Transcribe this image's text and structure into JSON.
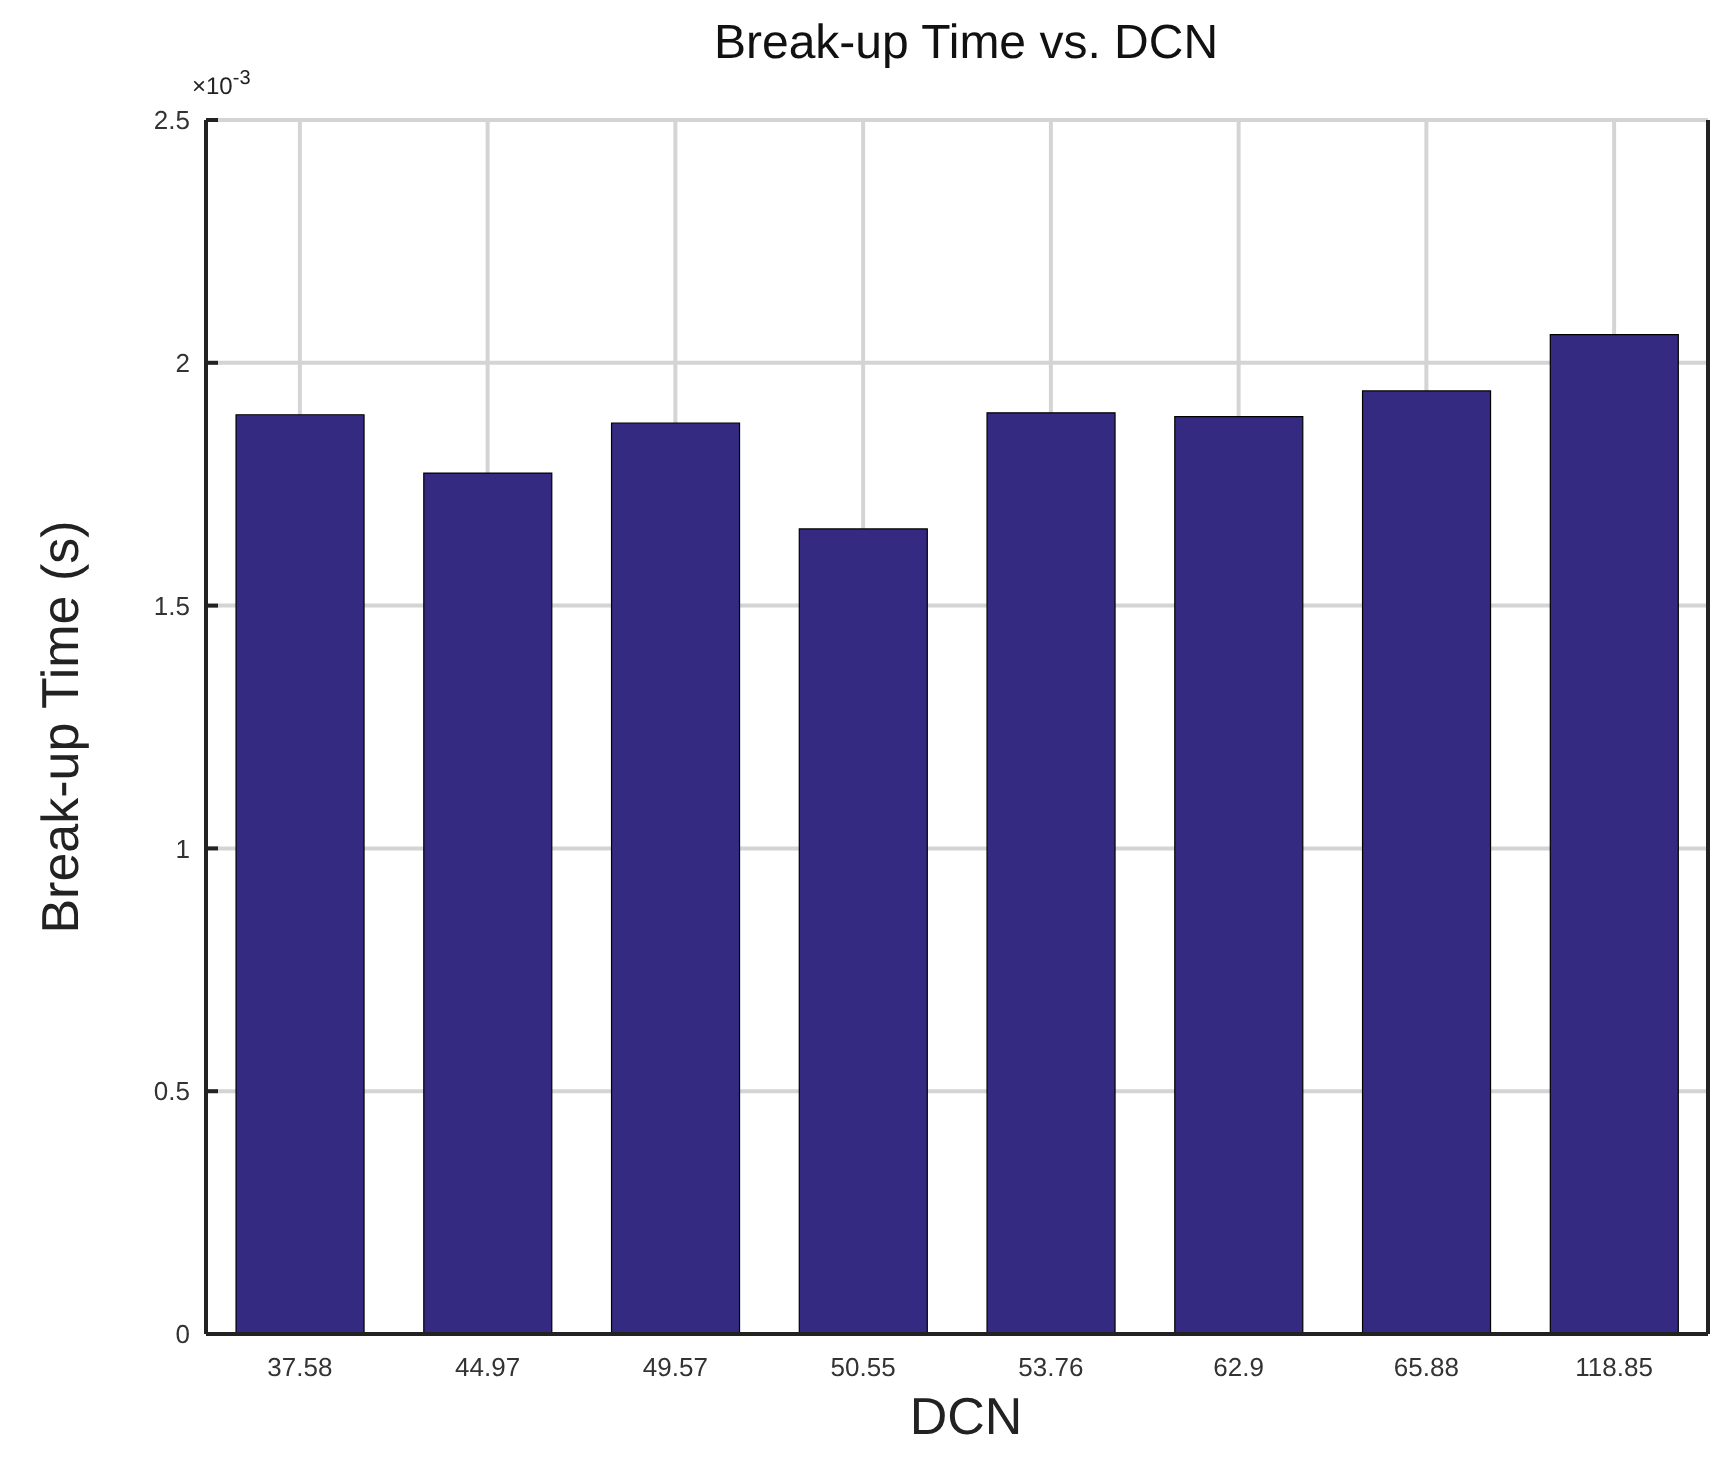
{
  "chart_data": {
    "type": "bar",
    "title": "Break-up Time vs. DCN",
    "xlabel": "DCN",
    "ylabel": "Break-up Time (s)",
    "categories": [
      "37.58",
      "44.97",
      "49.57",
      "50.55",
      "53.76",
      "62.9",
      "65.88",
      "118.85"
    ],
    "values": [
      1.893,
      1.773,
      1.876,
      1.658,
      1.897,
      1.889,
      1.942,
      2.058
    ],
    "color": "#342a82",
    "ylim": [
      0,
      2.5
    ],
    "yticks": [
      0,
      0.5,
      1,
      1.5,
      2,
      2.5
    ],
    "annotations": [
      "×10$^{-3}$"
    ],
    "grid": true
  }
}
